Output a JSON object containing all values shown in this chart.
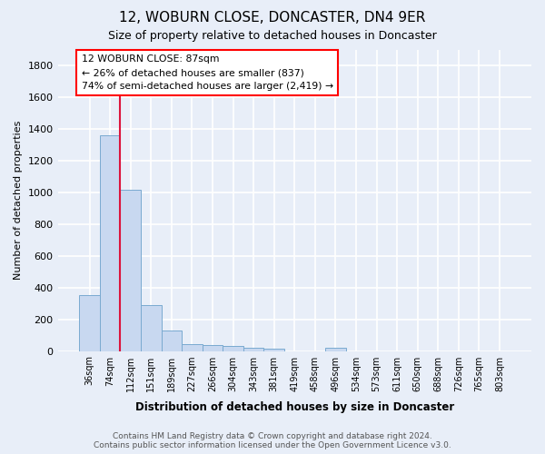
{
  "title": "12, WOBURN CLOSE, DONCASTER, DN4 9ER",
  "subtitle": "Size of property relative to detached houses in Doncaster",
  "xlabel": "Distribution of detached houses by size in Doncaster",
  "ylabel": "Number of detached properties",
  "categories": [
    "36sqm",
    "74sqm",
    "112sqm",
    "151sqm",
    "189sqm",
    "227sqm",
    "266sqm",
    "304sqm",
    "343sqm",
    "381sqm",
    "419sqm",
    "458sqm",
    "496sqm",
    "534sqm",
    "573sqm",
    "611sqm",
    "650sqm",
    "688sqm",
    "726sqm",
    "765sqm",
    "803sqm"
  ],
  "values": [
    355,
    1360,
    1020,
    290,
    130,
    45,
    35,
    30,
    20,
    15,
    0,
    0,
    20,
    0,
    0,
    0,
    0,
    0,
    0,
    0,
    0
  ],
  "bar_color": "#c8d8f0",
  "bar_edge_color": "#7aaad0",
  "annotation_text_line1": "12 WOBURN CLOSE: 87sqm",
  "annotation_text_line2": "← 26% of detached houses are smaller (837)",
  "annotation_text_line3": "74% of semi-detached houses are larger (2,419) →",
  "ylim": [
    0,
    1900
  ],
  "yticks": [
    0,
    200,
    400,
    600,
    800,
    1000,
    1200,
    1400,
    1600,
    1800
  ],
  "background_color": "#e8eef8",
  "grid_color": "#ffffff",
  "red_line_x": 1.5,
  "footer_text": "Contains HM Land Registry data © Crown copyright and database right 2024.\nContains public sector information licensed under the Open Government Licence v3.0."
}
